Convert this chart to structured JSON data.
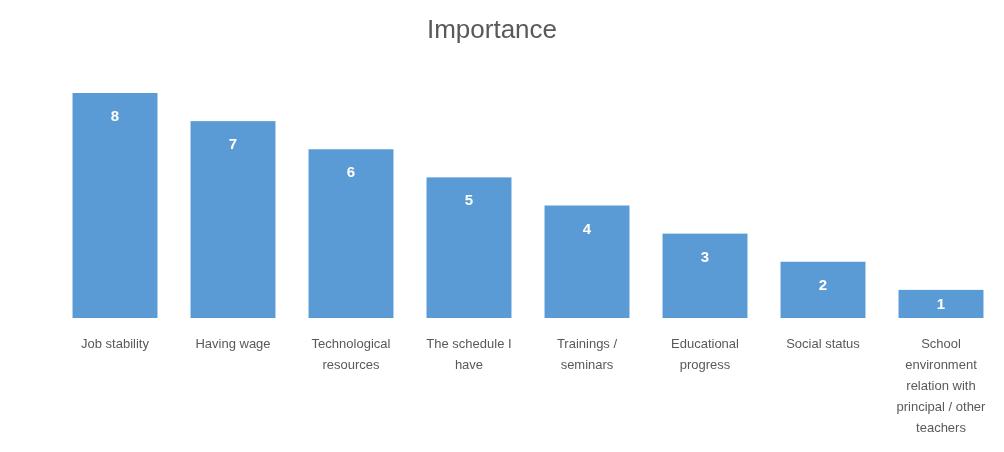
{
  "chart_data": {
    "type": "bar",
    "title": "Importance",
    "categories": [
      "Job stability",
      "Having wage",
      "Technological resources",
      "The schedule I have",
      "Trainings / seminars",
      "Educational progress",
      "Social status",
      "School environment relation with principal / other teachers"
    ],
    "values": [
      8,
      7,
      6,
      5,
      4,
      3,
      2,
      1
    ],
    "color": "#5b9bd5",
    "data_labels": true
  }
}
